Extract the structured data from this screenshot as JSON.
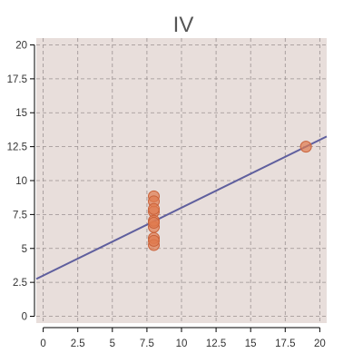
{
  "chart_data": {
    "type": "scatter",
    "title": "IV",
    "xlabel": "",
    "ylabel": "",
    "xlim": [
      -0.5,
      20.5
    ],
    "ylim": [
      -0.5,
      20.5
    ],
    "xticks": [
      0,
      2.5,
      5,
      7.5,
      10,
      12.5,
      15,
      17.5,
      20
    ],
    "xtick_labels": [
      "0",
      "2.5",
      "5",
      "7.5",
      "10",
      "12.5",
      "15",
      "17.5",
      "20"
    ],
    "yticks": [
      0,
      2.5,
      5,
      7.5,
      10,
      12.5,
      15,
      17.5,
      20
    ],
    "ytick_labels": [
      "0",
      "2.5",
      "5",
      "7.5",
      "10",
      "12.5",
      "15",
      "17.5",
      "20"
    ],
    "grid": true,
    "series": [
      {
        "type": "scatter",
        "x": [
          8,
          8,
          8,
          8,
          8,
          8,
          8,
          19,
          8,
          8,
          8
        ],
        "y": [
          6.58,
          5.76,
          7.71,
          8.84,
          8.47,
          7.04,
          5.25,
          12.5,
          5.56,
          7.91,
          6.89
        ],
        "color": "#e07b4f"
      },
      {
        "type": "line",
        "x": [
          -0.5,
          20.5
        ],
        "y": [
          2.75,
          13.25
        ],
        "color": "#5f5f9e"
      }
    ],
    "background_color": "#e8dedb"
  }
}
